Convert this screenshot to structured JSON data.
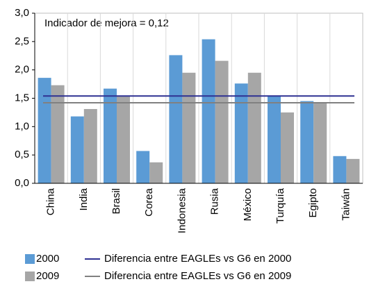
{
  "chart_data": {
    "type": "bar",
    "annotation": "Indicador de mejora = 0,12",
    "categories": [
      "China",
      "India",
      "Brasil",
      "Corea",
      "Indonesia",
      "Rusia",
      "México",
      "Turquía",
      "Egipto",
      "Taiwán"
    ],
    "series": [
      {
        "name": "2000",
        "color": "#5b9bd5",
        "values": [
          1.86,
          1.18,
          1.67,
          0.57,
          2.26,
          2.54,
          1.76,
          1.55,
          1.45,
          0.48
        ]
      },
      {
        "name": "2009",
        "color": "#a6a6a6",
        "values": [
          1.73,
          1.31,
          1.54,
          0.37,
          1.95,
          2.16,
          1.95,
          1.25,
          1.42,
          0.43
        ]
      }
    ],
    "reference_lines": [
      {
        "name": "Diferencia entre EAGLEs vs G6 en 2000",
        "color": "#2e3192",
        "value": 1.54
      },
      {
        "name": "Diferencia entre EAGLEs vs G6 en 2009",
        "color": "#808080",
        "value": 1.42
      }
    ],
    "ylim": [
      0,
      3
    ],
    "yticks": [
      {
        "value": 0,
        "label": "0,0"
      },
      {
        "value": 0.5,
        "label": "0,5"
      },
      {
        "value": 1,
        "label": "1,0"
      },
      {
        "value": 1.5,
        "label": "1,5"
      },
      {
        "value": 2,
        "label": "2,0"
      },
      {
        "value": 2.5,
        "label": "2,5"
      },
      {
        "value": 3,
        "label": "3,0"
      }
    ]
  }
}
